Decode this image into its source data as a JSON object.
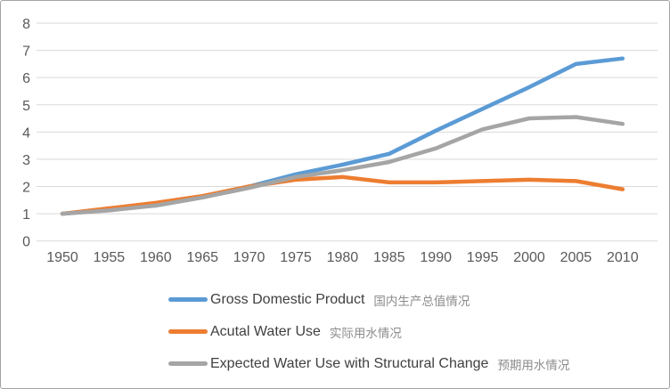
{
  "chart": {
    "background": "#FFFFFF",
    "border_color": "#A3A3A3",
    "gridline_color": "#D9D9D9",
    "axis_label_color": "#595959",
    "legend_text_color": "#404040",
    "legend_zh_text_color": "#8C8C8C"
  },
  "chart_data": {
    "type": "line",
    "x": [
      1950,
      1955,
      1960,
      1965,
      1970,
      1975,
      1980,
      1985,
      1990,
      1995,
      2000,
      2005,
      2010
    ],
    "series": [
      {
        "name": "Gross Domestic Product",
        "name_zh": "国内生产总值情况",
        "color": "#5B9BD5",
        "values": [
          1.0,
          1.15,
          1.3,
          1.6,
          2.0,
          2.45,
          2.8,
          3.2,
          4.05,
          4.85,
          5.65,
          6.5,
          6.7
        ]
      },
      {
        "name": "Acutal Water Use",
        "name_zh": "实际用水情况",
        "color": "#ED7D31",
        "values": [
          1.0,
          1.2,
          1.4,
          1.65,
          2.0,
          2.25,
          2.35,
          2.15,
          2.15,
          2.2,
          2.25,
          2.2,
          1.9
        ]
      },
      {
        "name": "Expected Water Use with Structural Change",
        "name_zh": "预期用水情况",
        "color": "#A5A5A5",
        "values": [
          1.0,
          1.12,
          1.3,
          1.6,
          1.95,
          2.35,
          2.6,
          2.9,
          3.4,
          4.1,
          4.5,
          4.55,
          4.3
        ]
      }
    ],
    "title": "",
    "xlabel": "",
    "ylabel": "",
    "ylim": [
      0,
      8
    ],
    "ytick_step": 1,
    "grid": true,
    "legend_position": "bottom-left",
    "draw_order": [
      0,
      1,
      2
    ]
  }
}
